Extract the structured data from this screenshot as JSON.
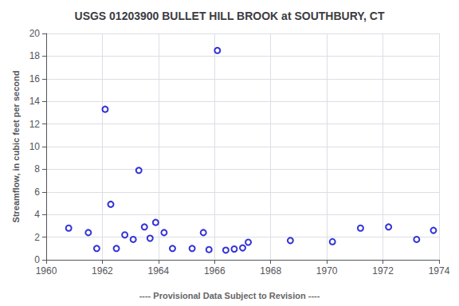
{
  "chart_data": {
    "type": "scatter",
    "title": "USGS 01203900 BULLET HILL BROOK at SOUTHBURY, CT",
    "ylabel": "Streamflow, in cubic feet per second",
    "annotation": "---- Provisional Data Subject to Revision ----",
    "x": [
      1960.8,
      1961.5,
      1961.8,
      1962.1,
      1962.3,
      1962.5,
      1962.8,
      1963.1,
      1963.3,
      1963.5,
      1963.7,
      1963.9,
      1964.2,
      1964.5,
      1965.2,
      1965.6,
      1965.8,
      1966.1,
      1966.4,
      1966.7,
      1967.0,
      1967.2,
      1968.7,
      1970.2,
      1971.2,
      1972.2,
      1973.2,
      1973.8
    ],
    "values": [
      2.8,
      2.4,
      1.0,
      13.3,
      4.9,
      1.0,
      2.2,
      1.8,
      7.9,
      2.9,
      1.9,
      3.3,
      2.4,
      1.0,
      1.0,
      2.4,
      0.9,
      18.5,
      0.85,
      0.95,
      1.05,
      1.55,
      1.7,
      1.6,
      2.8,
      2.9,
      1.8,
      2.6
    ],
    "color": "#0000cc",
    "marker": "open circle",
    "xlim": [
      1960,
      1974
    ],
    "ylim": [
      0,
      20
    ],
    "xticks": [
      1960,
      1962,
      1964,
      1966,
      1968,
      1970,
      1972,
      1974
    ],
    "yticks": [
      0,
      2,
      4,
      6,
      8,
      10,
      12,
      14,
      16,
      18,
      20
    ],
    "grid": true
  }
}
